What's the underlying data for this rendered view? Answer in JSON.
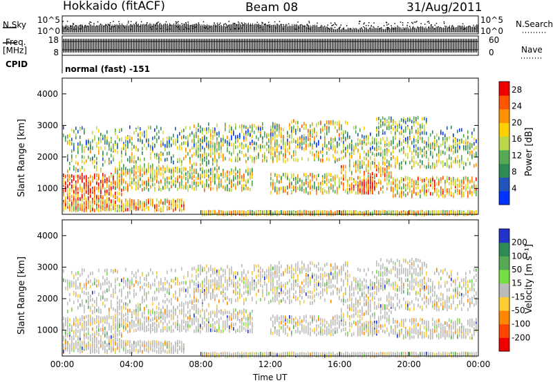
{
  "header": {
    "radar": "Hokkaido (fitACF)",
    "beam": "Beam 08",
    "date": "31/Aug/2011"
  },
  "panels": {
    "nsky_label": "N.Sky",
    "nsearch_label": "N.Search",
    "freq_label": "Freq.",
    "freq_unit": "[MHz]",
    "nave_label": "Nave",
    "cpid_label": "CPID",
    "cpid_value": "normal (fast) -151",
    "noise_ticks": [
      "10^5",
      "10^0"
    ],
    "freq_ticks": [
      "18",
      "8"
    ],
    "nave_ticks": [
      "60",
      "0"
    ]
  },
  "chart_data": [
    {
      "type": "heatmap",
      "name": "power",
      "ylabel": "Slant Range [km]",
      "y_ticks": [
        1000,
        2000,
        3000,
        4000
      ],
      "ylim": [
        180,
        4500
      ],
      "x_ticks": [
        "00:00",
        "04:00",
        "08:00",
        "12:00",
        "16:00",
        "20:00",
        "00:00"
      ],
      "xlim_hours": [
        0,
        24
      ],
      "colorbar": {
        "label": "Power [dB]",
        "ticks": [
          4,
          8,
          12,
          16,
          20,
          24,
          28
        ],
        "range": [
          0,
          30
        ],
        "colors": [
          "#0033ff",
          "#2255bb",
          "#2e8b57",
          "#55aa55",
          "#b8d84a",
          "#ffd000",
          "#ff9000",
          "#ff5500",
          "#ee0000"
        ]
      }
    },
    {
      "type": "heatmap",
      "name": "velocity",
      "ylabel": "Slant Range [km]",
      "y_ticks": [
        1000,
        2000,
        3000,
        4000
      ],
      "ylim": [
        180,
        4500
      ],
      "x_ticks": [
        "00:00",
        "04:00",
        "08:00",
        "12:00",
        "16:00",
        "20:00",
        "00:00"
      ],
      "xlim_hours": [
        0,
        24
      ],
      "xlabel": "Time UT",
      "colorbar": {
        "label": "Velocity [m s⁻¹]",
        "ticks": [
          200,
          100,
          50,
          15,
          -15,
          -50,
          -100,
          -200
        ],
        "colors": [
          "#2233cc",
          "#2e8b57",
          "#55aa55",
          "#77dd44",
          "#bbbbbb",
          "#ffcc33",
          "#ff8800",
          "#ff4400",
          "#ee0000"
        ]
      }
    }
  ]
}
